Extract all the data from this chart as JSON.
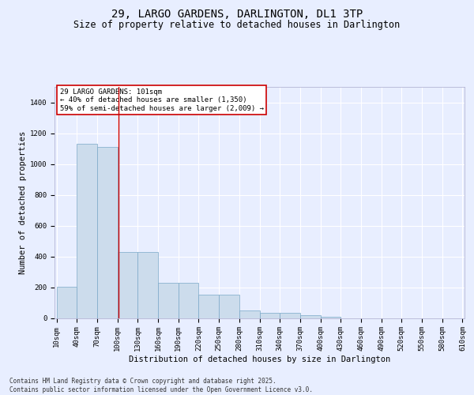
{
  "title": "29, LARGO GARDENS, DARLINGTON, DL1 3TP",
  "subtitle": "Size of property relative to detached houses in Darlington",
  "xlabel": "Distribution of detached houses by size in Darlington",
  "ylabel": "Number of detached properties",
  "categories": [
    "10sqm",
    "40sqm",
    "70sqm",
    "100sqm",
    "130sqm",
    "160sqm",
    "190sqm",
    "220sqm",
    "250sqm",
    "280sqm",
    "310sqm",
    "340sqm",
    "370sqm",
    "400sqm",
    "430sqm",
    "460sqm",
    "490sqm",
    "520sqm",
    "550sqm",
    "580sqm",
    "610sqm"
  ],
  "cat_vals": [
    10,
    40,
    70,
    100,
    130,
    160,
    190,
    220,
    250,
    280,
    310,
    340,
    370,
    400,
    430,
    460,
    490,
    520,
    550,
    580,
    610
  ],
  "counts": [
    205,
    1130,
    1110,
    430,
    430,
    230,
    230,
    150,
    150,
    50,
    35,
    35,
    18,
    8,
    0,
    0,
    0,
    0,
    0,
    0
  ],
  "bar_color": "#ccdcec",
  "bar_edgecolor": "#7aa8c8",
  "annotation_text": "29 LARGO GARDENS: 101sqm\n← 40% of detached houses are smaller (1,350)\n59% of semi-detached houses are larger (2,009) →",
  "vline_x": 101,
  "vline_color": "#cc0000",
  "ylim": [
    0,
    1500
  ],
  "yticks": [
    0,
    200,
    400,
    600,
    800,
    1000,
    1200,
    1400
  ],
  "footer": "Contains HM Land Registry data © Crown copyright and database right 2025.\nContains public sector information licensed under the Open Government Licence v3.0.",
  "bg_color": "#e8eeff",
  "grid_color": "#ffffff",
  "title_fontsize": 10,
  "subtitle_fontsize": 8.5,
  "axis_label_fontsize": 7.5,
  "tick_fontsize": 6.5,
  "annot_fontsize": 6.5,
  "footer_fontsize": 5.5
}
